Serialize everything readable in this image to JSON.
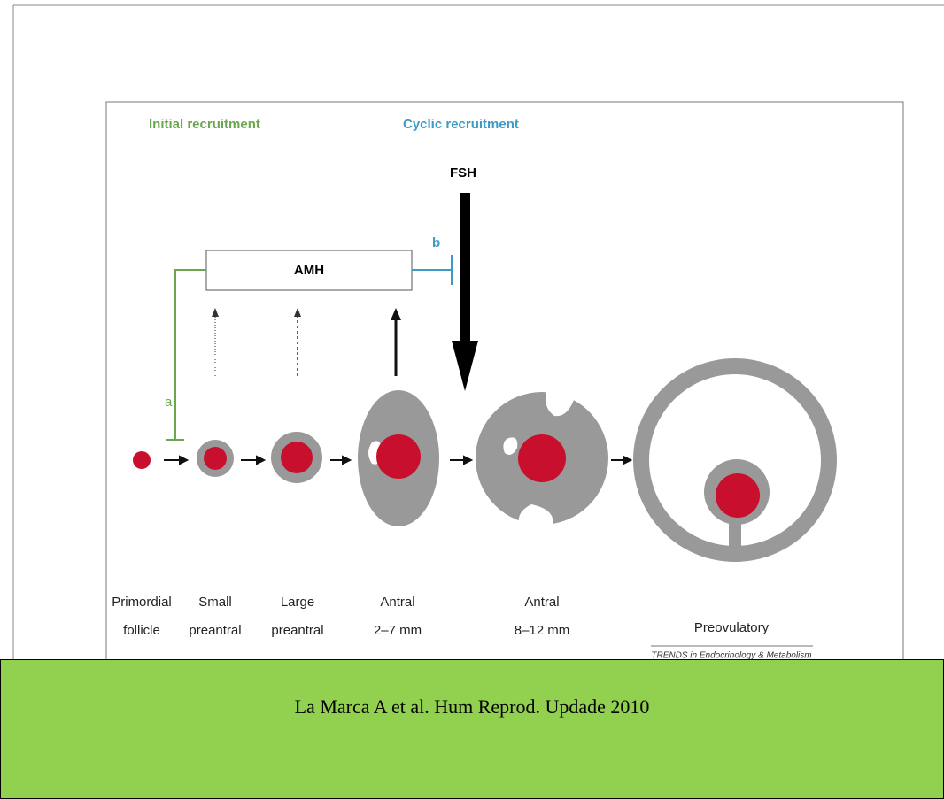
{
  "diagram": {
    "headers": {
      "initial": "Initial recruitment",
      "cyclic": "Cyclic recruitment"
    },
    "hormones": {
      "fsh": "FSH",
      "amh": "AMH"
    },
    "pathway_labels": {
      "a": "a",
      "b": "b"
    },
    "stages": [
      {
        "lines": [
          "Primordial",
          "follicle"
        ]
      },
      {
        "lines": [
          "Small",
          "preantral"
        ]
      },
      {
        "lines": [
          "Large",
          "preantral"
        ]
      },
      {
        "lines": [
          "Antral",
          "2–7 mm"
        ]
      },
      {
        "lines": [
          "Antral",
          "8–12 mm"
        ]
      },
      {
        "lines": [
          "Preovulatory"
        ]
      }
    ],
    "source": "TRENDS in Endocrinology & Metabolism"
  },
  "footer": {
    "citation": "La Marca A et al. Hum Reprod. Updade 2010"
  }
}
